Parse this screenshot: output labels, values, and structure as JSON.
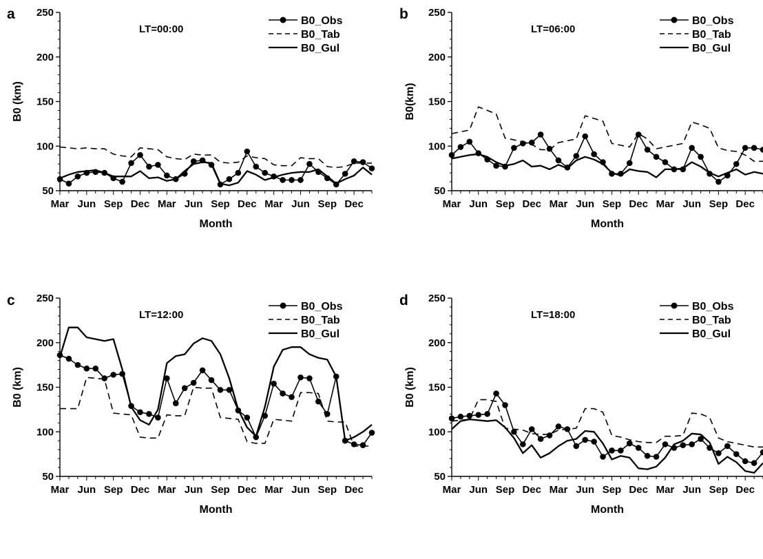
{
  "figure": {
    "x_ticks": [
      "Mar",
      "Jun",
      "Sep",
      "Dec",
      "Mar",
      "Jun",
      "Sep",
      "Dec",
      "Mar",
      "Jun",
      "Sep",
      "Dec"
    ],
    "colors": {
      "line": "#000000",
      "background": "#ffffff"
    }
  },
  "chart_data": [
    {
      "type": "line",
      "panel": "a",
      "lt_label": "LT=00:00",
      "xlabel": "Month",
      "ylabel": "B0 (km)",
      "ylim": [
        50,
        250
      ],
      "yticks": [
        50,
        100,
        150,
        200,
        250
      ],
      "x_index": [
        1,
        2,
        3,
        4,
        5,
        6,
        7,
        8,
        9,
        10,
        11,
        12,
        13,
        14,
        15,
        16,
        17,
        18,
        19,
        20,
        21,
        22,
        23,
        24,
        25,
        26,
        27,
        28,
        29,
        30,
        31,
        32,
        33,
        34,
        35,
        36
      ],
      "legend": {
        "position": "top-right",
        "entries": [
          "B0_Obs",
          "B0_Tab",
          "B0_Gul"
        ]
      },
      "series": [
        {
          "name": "B0_Obs",
          "style": "solid-circle-markers",
          "values": [
            63,
            58,
            66,
            70,
            71,
            70,
            64,
            60,
            81,
            90,
            77,
            79,
            67,
            63,
            69,
            83,
            84,
            79,
            57,
            63,
            70,
            94,
            77,
            70,
            66,
            62,
            62,
            62,
            80,
            71,
            64,
            57,
            69,
            83,
            82,
            75
          ]
        },
        {
          "name": "B0_Tab",
          "style": "dashed",
          "values": [
            99,
            98,
            97,
            98,
            97,
            97,
            91,
            89,
            88,
            98,
            97,
            96,
            88,
            86,
            85,
            91,
            90,
            90,
            82,
            81,
            82,
            89,
            87,
            86,
            79,
            78,
            78,
            87,
            86,
            86,
            77,
            76,
            77,
            81,
            81,
            81
          ]
        },
        {
          "name": "B0_Gul",
          "style": "solid",
          "values": [
            64,
            68,
            71,
            72,
            73,
            70,
            66,
            66,
            66,
            72,
            64,
            65,
            61,
            63,
            72,
            80,
            82,
            81,
            58,
            56,
            59,
            72,
            68,
            62,
            65,
            68,
            70,
            71,
            71,
            74,
            66,
            58,
            63,
            67,
            76,
            68
          ]
        }
      ]
    },
    {
      "type": "line",
      "panel": "b",
      "lt_label": "LT=06:00",
      "xlabel": "Month",
      "ylabel": "B0(km)",
      "ylim": [
        50,
        250
      ],
      "yticks": [
        50,
        100,
        150,
        200,
        250
      ],
      "x_index": [
        1,
        2,
        3,
        4,
        5,
        6,
        7,
        8,
        9,
        10,
        11,
        12,
        13,
        14,
        15,
        16,
        17,
        18,
        19,
        20,
        21,
        22,
        23,
        24,
        25,
        26,
        27,
        28,
        29,
        30,
        31,
        32,
        33,
        34,
        35,
        36
      ],
      "legend": {
        "position": "top-right",
        "entries": [
          "B0_Obs",
          "B0_Tab",
          "B0_Gul"
        ]
      },
      "series": [
        {
          "name": "B0_Obs",
          "style": "solid-circle-markers",
          "values": [
            90,
            99,
            105,
            92,
            85,
            78,
            77,
            98,
            103,
            104,
            113,
            97,
            84,
            76,
            89,
            111,
            91,
            82,
            69,
            69,
            81,
            113,
            96,
            88,
            82,
            74,
            74,
            98,
            88,
            69,
            60,
            67,
            80,
            98,
            98,
            96
          ]
        },
        {
          "name": "B0_Tab",
          "style": "dashed",
          "values": [
            114,
            116,
            118,
            144,
            140,
            136,
            109,
            107,
            105,
            102,
            96,
            96,
            104,
            106,
            108,
            134,
            131,
            128,
            103,
            101,
            99,
            114,
            108,
            97,
            99,
            101,
            103,
            127,
            124,
            120,
            98,
            95,
            94,
            90,
            83,
            83
          ]
        },
        {
          "name": "B0_Gul",
          "style": "solid",
          "values": [
            86,
            88,
            90,
            91,
            88,
            82,
            78,
            80,
            84,
            77,
            78,
            74,
            79,
            75,
            84,
            88,
            85,
            80,
            70,
            67,
            74,
            72,
            71,
            65,
            74,
            74,
            75,
            82,
            77,
            70,
            66,
            70,
            74,
            68,
            71,
            69
          ]
        }
      ]
    },
    {
      "type": "line",
      "panel": "c",
      "lt_label": "LT=12:00",
      "xlabel": "Month",
      "ylabel": "B0 (km)",
      "ylim": [
        50,
        250
      ],
      "yticks": [
        50,
        100,
        150,
        200,
        250
      ],
      "x_index": [
        1,
        2,
        3,
        4,
        5,
        6,
        7,
        8,
        9,
        10,
        11,
        12,
        13,
        14,
        15,
        16,
        17,
        18,
        19,
        20,
        21,
        22,
        23,
        24,
        25,
        26,
        27,
        28,
        29,
        30,
        31,
        32,
        33,
        34,
        35,
        36
      ],
      "legend": {
        "position": "top-right",
        "entries": [
          "B0_Obs",
          "B0_Tab",
          "B0_Gul"
        ]
      },
      "series": [
        {
          "name": "B0_Obs",
          "style": "solid-circle-markers",
          "values": [
            186,
            182,
            175,
            171,
            171,
            160,
            164,
            165,
            129,
            122,
            120,
            116,
            160,
            132,
            149,
            155,
            169,
            158,
            147,
            147,
            124,
            116,
            94,
            118,
            154,
            143,
            139,
            161,
            160,
            134,
            120,
            162,
            90,
            86,
            85,
            99
          ]
        },
        {
          "name": "B0_Tab",
          "style": "dashed",
          "values": [
            126,
            126,
            126,
            161,
            160,
            159,
            121,
            120,
            119,
            94,
            93,
            93,
            119,
            118,
            118,
            150,
            149,
            149,
            116,
            115,
            114,
            89,
            87,
            87,
            114,
            113,
            112,
            144,
            144,
            143,
            112,
            111,
            111,
            84,
            84,
            84
          ]
        },
        {
          "name": "B0_Gul",
          "style": "solid",
          "values": [
            184,
            217,
            217,
            206,
            204,
            202,
            204,
            170,
            128,
            113,
            108,
            125,
            177,
            185,
            187,
            199,
            205,
            202,
            187,
            160,
            125,
            105,
            95,
            128,
            173,
            192,
            195,
            195,
            187,
            183,
            181,
            162,
            90,
            94,
            100,
            108
          ]
        }
      ]
    },
    {
      "type": "line",
      "panel": "d",
      "lt_label": "LT=18:00",
      "xlabel": "Month",
      "ylabel": "B0 (km)",
      "ylim": [
        50,
        250
      ],
      "yticks": [
        50,
        100,
        150,
        200,
        250
      ],
      "x_index": [
        1,
        2,
        3,
        4,
        5,
        6,
        7,
        8,
        9,
        10,
        11,
        12,
        13,
        14,
        15,
        16,
        17,
        18,
        19,
        20,
        21,
        22,
        23,
        24,
        25,
        26,
        27,
        28,
        29,
        30,
        31,
        32,
        33,
        34,
        35,
        36
      ],
      "legend": {
        "position": "top-right",
        "entries": [
          "B0_Obs",
          "B0_Tab",
          "B0_Gul"
        ]
      },
      "series": [
        {
          "name": "B0_Obs",
          "style": "solid-circle-markers",
          "values": [
            115,
            117,
            118,
            119,
            120,
            143,
            130,
            100,
            86,
            103,
            92,
            96,
            106,
            103,
            84,
            91,
            89,
            72,
            79,
            79,
            87,
            82,
            73,
            72,
            86,
            82,
            85,
            86,
            92,
            82,
            76,
            84,
            75,
            67,
            65,
            77
          ]
        },
        {
          "name": "B0_Tab",
          "style": "dashed",
          "values": [
            112,
            113,
            114,
            136,
            136,
            134,
            104,
            103,
            102,
            98,
            97,
            97,
            102,
            103,
            104,
            126,
            126,
            122,
            96,
            94,
            91,
            89,
            88,
            88,
            95,
            95,
            96,
            121,
            120,
            116,
            93,
            89,
            87,
            85,
            83,
            83
          ]
        },
        {
          "name": "B0_Gul",
          "style": "solid",
          "values": [
            103,
            112,
            114,
            113,
            112,
            113,
            105,
            93,
            76,
            85,
            71,
            76,
            84,
            90,
            92,
            101,
            100,
            87,
            69,
            73,
            71,
            59,
            58,
            61,
            71,
            86,
            90,
            98,
            97,
            88,
            64,
            72,
            66,
            56,
            54,
            65
          ]
        }
      ]
    }
  ]
}
